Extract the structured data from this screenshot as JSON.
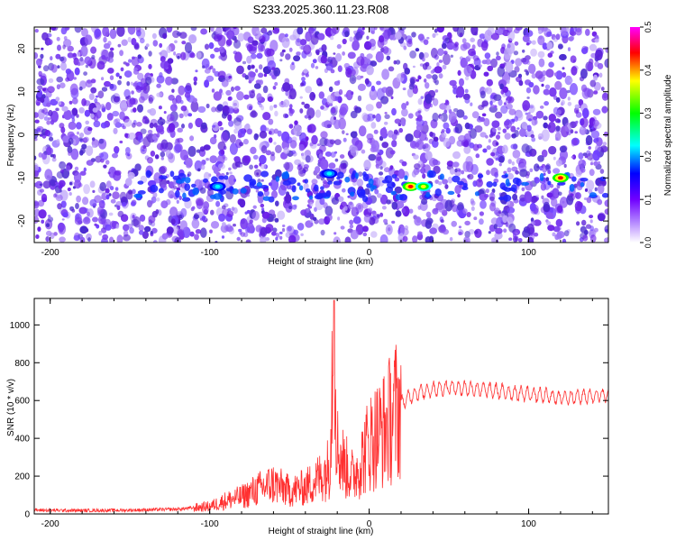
{
  "title": "S233.2025.360.11.23.R08",
  "chart_data": [
    {
      "type": "heatmap",
      "xlabel": "Height of straight line (km)",
      "ylabel": "Frequency (Hz)",
      "xlim": [
        -210,
        150
      ],
      "ylim": [
        -25,
        25
      ],
      "x_ticks": [
        -200,
        -100,
        0,
        100
      ],
      "y_ticks": [
        -20,
        -10,
        0,
        10,
        20
      ],
      "colorbar": {
        "label": "Normalized spectral amplitude",
        "range": [
          0.0,
          0.5
        ],
        "ticks": [
          "0.0",
          "0.1",
          "0.2",
          "0.3",
          "0.4",
          "0.5"
        ],
        "colors": [
          "#ffffff",
          "#8800ff",
          "#0000ff",
          "#00ffff",
          "#00ff00",
          "#ffff00",
          "#ff0000",
          "#ff00ff"
        ]
      },
      "features": [
        {
          "x": 120,
          "y": -10,
          "value": 0.45
        },
        {
          "x": 26,
          "y": -12,
          "value": 0.42
        },
        {
          "x": 34,
          "y": -12,
          "value": 0.35
        },
        {
          "x": -25,
          "y": -9,
          "value": 0.2
        },
        {
          "x": -95,
          "y": -12,
          "value": 0.15
        }
      ]
    },
    {
      "type": "line",
      "xlabel": "Height of straight line (km)",
      "ylabel": "SNR (10 * v/v)",
      "xlim": [
        -210,
        150
      ],
      "ylim": [
        0,
        1140
      ],
      "x_ticks": [
        -200,
        -100,
        0,
        100
      ],
      "y_ticks": [
        0,
        200,
        400,
        600,
        800,
        1000
      ],
      "color": "#ff3030",
      "series": [
        {
          "x": [
            -210,
            -180,
            -150,
            -120,
            -100,
            -90,
            -80,
            -70,
            -60,
            -50,
            -40,
            -30,
            -25,
            -22,
            -20,
            -15,
            -10,
            -5,
            0,
            5,
            10,
            15,
            20,
            25,
            30,
            40,
            50,
            60,
            70,
            80,
            90,
            100,
            110,
            120,
            130,
            140,
            150
          ],
          "y": [
            20,
            18,
            20,
            25,
            40,
            70,
            90,
            130,
            160,
            120,
            140,
            200,
            250,
            1130,
            350,
            250,
            200,
            280,
            380,
            420,
            450,
            530,
            580,
            620,
            640,
            660,
            670,
            665,
            660,
            650,
            640,
            635,
            625,
            615,
            620,
            625,
            630
          ]
        }
      ]
    }
  ]
}
